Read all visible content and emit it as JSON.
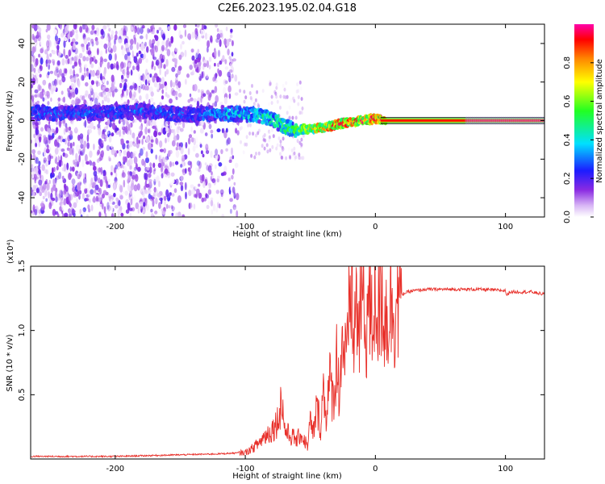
{
  "title": "C2E6.2023.195.02.04.G18",
  "chart_data": [
    {
      "type": "heatmap",
      "xlabel": "Height of straight line (km)",
      "ylabel": "Frequency (Hz)",
      "xlim": [
        -265,
        130
      ],
      "ylim": [
        -50,
        50
      ],
      "x_ticks": [
        -200,
        -100,
        0,
        100
      ],
      "y_ticks": [
        -40,
        -20,
        0,
        20,
        40
      ],
      "x_tick_labels": [
        "-200",
        "-100",
        "0",
        "100"
      ],
      "y_tick_labels": [
        "-40",
        "-20",
        "0",
        "20",
        "40"
      ],
      "colorbar": {
        "label": "Normalized spectral amplitude",
        "range": [
          0,
          1
        ],
        "ticks": [
          0.0,
          0.2,
          0.4,
          0.6,
          0.8
        ],
        "tick_labels": [
          "0.0",
          "0.2",
          "0.4",
          "0.6",
          "0.8"
        ]
      },
      "ridge": {
        "x": [
          -200,
          -180,
          -160,
          -140,
          -120,
          -100,
          -90,
          -80,
          -70,
          -60,
          -50,
          -40,
          -30,
          -20,
          -10,
          0,
          10,
          50,
          100,
          130
        ],
        "frequency": [
          4,
          5,
          4,
          3,
          4,
          3,
          3,
          1,
          -3,
          -5,
          -4,
          -4,
          -2,
          -1,
          0,
          1,
          0,
          0,
          0,
          0
        ],
        "amplitude": [
          0.3,
          0.3,
          0.3,
          0.3,
          0.35,
          0.4,
          0.42,
          0.45,
          0.5,
          0.55,
          0.7,
          0.8,
          0.85,
          0.85,
          0.85,
          0.85,
          0.9,
          0.9,
          0.9,
          0.9
        ]
      }
    },
    {
      "type": "line",
      "xlabel": "Height of straight line (km)",
      "ylabel": "SNR (10 * v/v)",
      "y_scale_label": "(x10⁴)",
      "xlim": [
        -265,
        130
      ],
      "ylim": [
        0,
        1.5
      ],
      "x_ticks": [
        -200,
        -100,
        0,
        100
      ],
      "y_ticks": [
        0.5,
        1.0,
        1.5
      ],
      "x_tick_labels": [
        "-200",
        "-100",
        "0",
        "100"
      ],
      "y_tick_labels": [
        "0.5",
        "1.0",
        "1.5"
      ],
      "series": [
        {
          "color": "#e8302a",
          "x": [
            -265,
            -240,
            -200,
            -160,
            -120,
            -100,
            -95,
            -90,
            -85,
            -80,
            -75,
            -72,
            -70,
            -68,
            -65,
            -62,
            -60,
            -58,
            -55,
            -52,
            -50,
            -48,
            -45,
            -42,
            -40,
            -38,
            -35,
            -32,
            -30,
            -28,
            -25,
            -22,
            -20,
            -18,
            -17,
            -15,
            -12,
            -10,
            -8,
            -5,
            -3,
            0,
            3,
            5,
            7,
            10,
            13,
            15,
            18,
            20,
            25,
            30,
            40,
            60,
            80,
            100,
            101,
            103,
            120,
            130
          ],
          "y": [
            0.02,
            0.02,
            0.02,
            0.03,
            0.04,
            0.05,
            0.08,
            0.12,
            0.18,
            0.22,
            0.3,
            0.48,
            0.25,
            0.2,
            0.18,
            0.16,
            0.14,
            0.2,
            0.15,
            0.1,
            0.3,
            0.18,
            0.4,
            0.25,
            0.55,
            0.35,
            0.6,
            0.45,
            0.8,
            0.55,
            0.95,
            0.7,
            1.15,
            1.5,
            0.85,
            1.2,
            1.0,
            1.35,
            0.95,
            1.25,
            1.0,
            1.35,
            1.05,
            1.4,
            1.1,
            1.15,
            1.22,
            1.2,
            1.26,
            1.28,
            1.3,
            1.31,
            1.32,
            1.32,
            1.32,
            1.31,
            1.27,
            1.3,
            1.3,
            1.28
          ]
        }
      ]
    }
  ]
}
